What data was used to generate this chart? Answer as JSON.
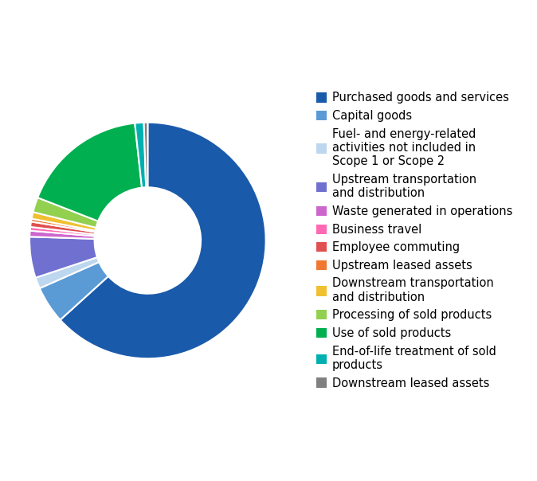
{
  "legend_labels": [
    "Purchased goods and services",
    "Capital goods",
    "Fuel- and energy-related\nactivities not included in\nScope 1 or Scope 2",
    "Upstream transportation\nand distribution",
    "Waste generated in operations",
    "Business travel",
    "Employee commuting",
    "Upstream leased assets",
    "Downstream transportation\nand distribution",
    "Processing of sold products",
    "Use of sold products",
    "End-of-life treatment of sold\nproducts",
    "Downstream leased assets"
  ],
  "values": [
    62.0,
    5.0,
    1.5,
    5.5,
    0.8,
    0.5,
    0.7,
    0.4,
    0.9,
    2.0,
    17.0,
    1.2,
    0.5
  ],
  "colors": [
    "#1a5aaa",
    "#5b9bd5",
    "#bdd7ee",
    "#7070d0",
    "#cc66cc",
    "#ff69b4",
    "#e05050",
    "#f07830",
    "#f0c030",
    "#92d050",
    "#00b050",
    "#00b0b0",
    "#808080"
  ],
  "background_color": "#ffffff",
  "wedge_edge_color": "#ffffff",
  "wedge_linewidth": 1.5,
  "donut_ratio": 0.45,
  "legend_fontsize": 10.5
}
